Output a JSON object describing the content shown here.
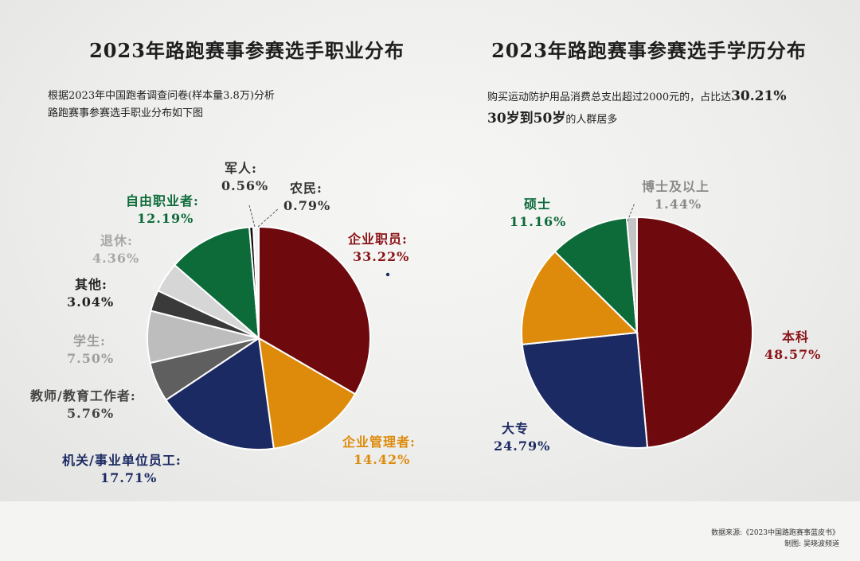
{
  "left": {
    "title": "2023年路跑赛事参赛选手职业分布",
    "desc_line1": "根据2023年中国跑者调查问卷(样本量3.8万)分析",
    "desc_line2": "路跑赛事参赛选手职业分布如下图"
  },
  "right": {
    "title": "2023年路跑赛事参赛选手学历分布",
    "desc_part1": "购买运动防护用品消费总支出超过2000元的，占比达",
    "desc_hl1": "30.21%",
    "desc_hl2": "30岁到50岁",
    "desc_part2": "的人群居多"
  },
  "chart_data": [
    {
      "type": "pie",
      "title": "2023年路跑赛事参赛选手职业分布",
      "slices": [
        {
          "label": "企业职员:",
          "value": 33.22,
          "pct": "33.22%",
          "color": "#6e0a0e"
        },
        {
          "label": "企业管理者:",
          "value": 14.42,
          "pct": "14.42%",
          "color": "#de8b0c"
        },
        {
          "label": "机关/事业单位员工:",
          "value": 17.71,
          "pct": "17.71%",
          "color": "#1c2a63"
        },
        {
          "label": "教师/教育工作者:",
          "value": 5.76,
          "pct": "5.76%",
          "color": "#5f5f5f"
        },
        {
          "label": "学生:",
          "value": 7.5,
          "pct": "7.50%",
          "color": "#bdbdbd"
        },
        {
          "label": "其他:",
          "value": 3.04,
          "pct": "3.04%",
          "color": "#3a3a3a"
        },
        {
          "label": "退休:",
          "value": 4.36,
          "pct": "4.36%",
          "color": "#d6d6d6"
        },
        {
          "label": "自由职业者:",
          "value": 12.19,
          "pct": "12.19%",
          "color": "#0d6b3a"
        },
        {
          "label": "军人:",
          "value": 0.56,
          "pct": "0.56%",
          "color": "#101010"
        },
        {
          "label": "农民:",
          "value": 0.79,
          "pct": "0.79%",
          "color": "#f2f2f2"
        }
      ]
    },
    {
      "type": "pie",
      "title": "2023年路跑赛事参赛选手学历分布",
      "slices": [
        {
          "label": "本科",
          "value": 48.57,
          "pct": "48.57%",
          "color": "#6e0a0e"
        },
        {
          "label": "大专",
          "value": 24.79,
          "pct": "24.79%",
          "color": "#1c2a63"
        },
        {
          "label": "",
          "value": 14.04,
          "pct": "",
          "color": "#de8b0c"
        },
        {
          "label": "硕士",
          "value": 11.16,
          "pct": "11.16%",
          "color": "#0d6b3a"
        },
        {
          "label": "博士及以上",
          "value": 1.44,
          "pct": "1.44%",
          "color": "#c4c4c4"
        }
      ]
    }
  ],
  "source": {
    "line1": "数据来源:《2023中国路跑赛事蓝皮书》",
    "line2": "制图: 吴晓波频道"
  }
}
